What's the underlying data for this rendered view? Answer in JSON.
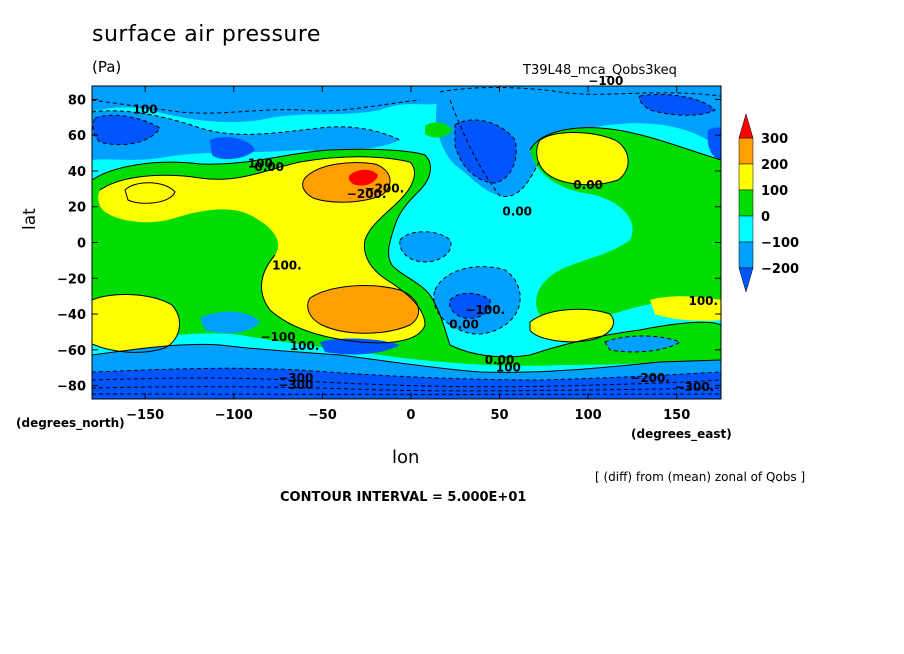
{
  "chart_data": {
    "type": "heatmap",
    "title": "surface air pressure",
    "units": "(Pa)",
    "run_id": "T39L48_mca_Qobs3keq",
    "xlabel": "lon",
    "ylabel": "lat",
    "x_units": "(degrees_east)",
    "y_units": "(degrees_north)",
    "x_ticks": [
      -150,
      -100,
      -50,
      0,
      50,
      100,
      150
    ],
    "y_ticks": [
      80,
      60,
      40,
      20,
      0,
      -20,
      -40,
      -60,
      -80
    ],
    "xlim": [
      -180,
      175
    ],
    "ylim": [
      -87.5,
      87.5
    ],
    "note": "[ (diff) from (mean) zonal of Qobs ]",
    "contour_interval": "CONTOUR INTERVAL = 5.000E+01",
    "colorbar": {
      "levels": [
        -200,
        -100,
        0,
        100,
        200,
        300
      ],
      "labels": [
        "300",
        "200",
        "100",
        "0",
        "−100",
        "−200"
      ],
      "colors": [
        "#0055ff",
        "#00a0ff",
        "#00ffff",
        "#00dd00",
        "#ffff00",
        "#ffa000",
        "#ff0000"
      ]
    },
    "contour_labels": [
      "100",
      "−200.",
      "0.00",
      "100",
      "−200.",
      "100.",
      "−100",
      "0.00",
      "100.",
      "0.00",
      "−100.",
      "100.",
      "0.00",
      "−100",
      "0.00",
      "100",
      "−300",
      "−300",
      "−200.",
      "−300."
    ],
    "features": [
      {
        "name": "high",
        "lon": -25,
        "lat": 35,
        "peak": 300
      },
      {
        "name": "high",
        "lon": -20,
        "lat": -33,
        "peak": 200
      },
      {
        "name": "high",
        "lon": -145,
        "lat": 28,
        "peak": 100
      },
      {
        "name": "high",
        "lon": -165,
        "lat": -45,
        "peak": 100
      },
      {
        "name": "high",
        "lon": 95,
        "lat": 45,
        "peak": 100
      },
      {
        "name": "high",
        "lon": 90,
        "lat": -47,
        "peak": 100
      },
      {
        "name": "low",
        "lon": 45,
        "lat": -35,
        "peak": -200
      },
      {
        "name": "low",
        "lon": 50,
        "lat": 50,
        "peak": -200
      },
      {
        "name": "low",
        "lon": -160,
        "lat": 60,
        "peak": -200
      },
      {
        "name": "low",
        "lon": 0,
        "lat": -82,
        "peak": -300
      }
    ]
  }
}
